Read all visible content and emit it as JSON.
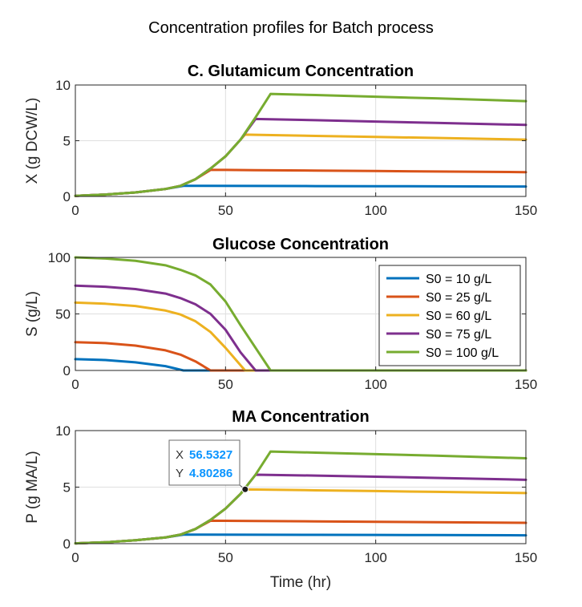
{
  "figure_title": "Concentration profiles for Batch process",
  "legend": {
    "entries": [
      "S0 = 10 g/L",
      "S0 = 25 g/L",
      "S0 = 60 g/L",
      "S0 = 75 g/L",
      "S0 = 100 g/L"
    ],
    "placement": "right of glucose panel"
  },
  "datatip": {
    "x_key": "X",
    "x_value": "56.5327",
    "y_key": "Y",
    "y_value": "4.80286",
    "panel": 2,
    "point": [
      56.5327,
      4.80286
    ],
    "value_color": "#0b95ff"
  },
  "colors": [
    "#0072bd",
    "#d95319",
    "#edb120",
    "#7e2f8e",
    "#77ac30"
  ],
  "chart_data": [
    {
      "type": "line",
      "title": "C. Glutamicum Concentration",
      "xlabel": "",
      "ylabel": "X (g DCW/L)",
      "xlim": [
        0,
        150
      ],
      "ylim": [
        0,
        10
      ],
      "xticks": [
        "0",
        "50",
        "100",
        "150"
      ],
      "xtick_values": [
        0,
        50,
        100,
        150
      ],
      "yticks": [
        "0",
        "5",
        "10"
      ],
      "ytick_values": [
        0,
        5,
        10
      ],
      "grid": true,
      "series": [
        {
          "name": "S0 = 10 g/L",
          "x": [
            0,
            10,
            20,
            30,
            36,
            40,
            60,
            80,
            100,
            120,
            150
          ],
          "y": [
            0.05,
            0.17,
            0.36,
            0.67,
            0.95,
            0.95,
            0.94,
            0.93,
            0.92,
            0.91,
            0.89
          ]
        },
        {
          "name": "S0 = 25 g/L",
          "x": [
            0,
            10,
            20,
            30,
            35,
            40,
            45,
            50,
            60,
            80,
            100,
            120,
            150
          ],
          "y": [
            0.05,
            0.17,
            0.36,
            0.67,
            0.95,
            1.55,
            2.38,
            2.38,
            2.36,
            2.32,
            2.28,
            2.24,
            2.18
          ]
        },
        {
          "name": "S0 = 60 g/L",
          "x": [
            0,
            10,
            20,
            30,
            35,
            40,
            45,
            50,
            56.5,
            60,
            80,
            100,
            120,
            150
          ],
          "y": [
            0.05,
            0.17,
            0.36,
            0.67,
            0.95,
            1.55,
            2.5,
            3.6,
            5.55,
            5.53,
            5.43,
            5.34,
            5.25,
            5.1
          ]
        },
        {
          "name": "S0 = 75 g/L",
          "x": [
            0,
            10,
            20,
            30,
            35,
            40,
            45,
            50,
            55,
            60,
            80,
            100,
            120,
            150
          ],
          "y": [
            0.05,
            0.17,
            0.36,
            0.67,
            0.95,
            1.55,
            2.5,
            3.6,
            5.1,
            6.95,
            6.84,
            6.72,
            6.6,
            6.42
          ]
        },
        {
          "name": "S0 = 100 g/L",
          "x": [
            0,
            10,
            20,
            30,
            35,
            40,
            45,
            50,
            55,
            60,
            65,
            80,
            100,
            120,
            150
          ],
          "y": [
            0.05,
            0.17,
            0.36,
            0.67,
            0.95,
            1.55,
            2.5,
            3.6,
            5.1,
            7.1,
            9.2,
            9.1,
            8.95,
            8.8,
            8.55
          ]
        }
      ]
    },
    {
      "type": "line",
      "title": "Glucose Concentration",
      "xlabel": "",
      "ylabel": "S (g/L)",
      "xlim": [
        0,
        150
      ],
      "ylim": [
        0,
        100
      ],
      "xticks": [
        "0",
        "50",
        "100",
        "150"
      ],
      "xtick_values": [
        0,
        50,
        100,
        150
      ],
      "yticks": [
        "0",
        "50",
        "100"
      ],
      "ytick_values": [
        0,
        50,
        100
      ],
      "grid": true,
      "series": [
        {
          "name": "S0 = 10 g/L",
          "x": [
            0,
            10,
            20,
            30,
            36,
            150
          ],
          "y": [
            10,
            9.2,
            7.2,
            3.8,
            0,
            0
          ]
        },
        {
          "name": "S0 = 25 g/L",
          "x": [
            0,
            10,
            20,
            30,
            35,
            40,
            45,
            150
          ],
          "y": [
            25,
            24.2,
            22,
            17.8,
            14,
            8,
            0,
            0
          ]
        },
        {
          "name": "S0 = 60 g/L",
          "x": [
            0,
            10,
            20,
            30,
            35,
            40,
            45,
            50,
            56.5,
            150
          ],
          "y": [
            60,
            59,
            57,
            53,
            49.5,
            43.5,
            34,
            20,
            0,
            0
          ]
        },
        {
          "name": "S0 = 75 g/L",
          "x": [
            0,
            10,
            20,
            30,
            35,
            40,
            45,
            50,
            55,
            60,
            150
          ],
          "y": [
            75,
            74,
            72,
            68,
            64,
            58.5,
            50,
            36,
            16,
            0,
            0
          ]
        },
        {
          "name": "S0 = 100 g/L",
          "x": [
            0,
            10,
            20,
            30,
            35,
            40,
            45,
            50,
            55,
            60,
            65,
            150
          ],
          "y": [
            100,
            99,
            97,
            93,
            89,
            84,
            76,
            61,
            40,
            20,
            0,
            0
          ]
        }
      ]
    },
    {
      "type": "line",
      "title": "MA Concentration",
      "xlabel": "Time (hr)",
      "ylabel": "P (g MA/L)",
      "xlim": [
        0,
        150
      ],
      "ylim": [
        0,
        10
      ],
      "xticks": [
        "0",
        "50",
        "100",
        "150"
      ],
      "xtick_values": [
        0,
        50,
        100,
        150
      ],
      "yticks": [
        "0",
        "5",
        "10"
      ],
      "ytick_values": [
        0,
        5,
        10
      ],
      "grid": true,
      "series": [
        {
          "name": "S0 = 10 g/L",
          "x": [
            0,
            10,
            20,
            30,
            36,
            40,
            60,
            80,
            100,
            120,
            150
          ],
          "y": [
            0.03,
            0.12,
            0.3,
            0.55,
            0.8,
            0.8,
            0.79,
            0.78,
            0.77,
            0.76,
            0.74
          ]
        },
        {
          "name": "S0 = 25 g/L",
          "x": [
            0,
            10,
            20,
            30,
            35,
            40,
            45,
            50,
            60,
            80,
            100,
            120,
            150
          ],
          "y": [
            0.03,
            0.12,
            0.3,
            0.55,
            0.8,
            1.3,
            2.03,
            2.02,
            2.0,
            1.97,
            1.93,
            1.9,
            1.84
          ]
        },
        {
          "name": "S0 = 60 g/L",
          "x": [
            0,
            10,
            20,
            30,
            35,
            40,
            45,
            50,
            56.5,
            60,
            80,
            100,
            120,
            150
          ],
          "y": [
            0.03,
            0.12,
            0.3,
            0.55,
            0.8,
            1.3,
            2.1,
            3.1,
            4.8,
            4.79,
            4.72,
            4.65,
            4.58,
            4.48
          ]
        },
        {
          "name": "S0 = 75 g/L",
          "x": [
            0,
            10,
            20,
            30,
            35,
            40,
            45,
            50,
            55,
            60,
            80,
            100,
            120,
            150
          ],
          "y": [
            0.03,
            0.12,
            0.3,
            0.55,
            0.8,
            1.3,
            2.1,
            3.1,
            4.4,
            6.1,
            6.02,
            5.92,
            5.82,
            5.65
          ]
        },
        {
          "name": "S0 = 100 g/L",
          "x": [
            0,
            10,
            20,
            30,
            35,
            40,
            45,
            50,
            55,
            60,
            65,
            80,
            100,
            120,
            150
          ],
          "y": [
            0.03,
            0.12,
            0.3,
            0.55,
            0.8,
            1.3,
            2.1,
            3.1,
            4.4,
            6.1,
            8.15,
            8.05,
            7.92,
            7.78,
            7.55
          ]
        }
      ]
    }
  ]
}
